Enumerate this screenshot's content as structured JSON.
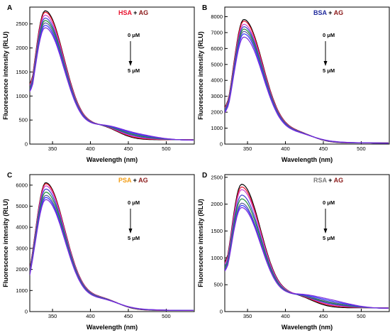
{
  "figure": {
    "protein_colors": {
      "HSA": "#e8112d",
      "BSA": "#1f2a9c",
      "PSA": "#f39c12",
      "RSA": "#7a7a7a"
    },
    "ligand_color": "#8b1a1a",
    "series_colors": [
      "#000000",
      "#e8112d",
      "#cc44cc",
      "#3f3fd0",
      "#1e8c3a",
      "#5a5a9a",
      "#3535ff",
      "#7a2ad9"
    ]
  },
  "chart_data": [
    {
      "type": "line",
      "panel_label": "A",
      "protein": "HSA",
      "plus": " + ",
      "ligand": "AG",
      "xlabel": "Wavelength (nm)",
      "ylabel": "Fluorescence intensity (RLU)",
      "xlim": [
        320,
        537
      ],
      "ylim": [
        0,
        2850
      ],
      "xticks": [
        350,
        400,
        450,
        500
      ],
      "yticks": [
        0,
        500,
        1000,
        1500,
        2000,
        2500
      ],
      "conc_start": "0 μM",
      "conc_end": "5 μM",
      "peak_x": 340,
      "peaks": [
        2750,
        2720,
        2660,
        2600,
        2550,
        2500,
        2450,
        2400
      ],
      "shoulders": [
        0,
        15,
        35,
        55,
        75,
        95,
        110,
        130
      ],
      "start_value": 1250,
      "tail_at_420": 470,
      "tail_end": 90,
      "grid": false,
      "legend": "none"
    },
    {
      "type": "line",
      "panel_label": "B",
      "protein": "BSA",
      "plus": " + ",
      "ligand": "AG",
      "xlabel": "Wavelength (nm)",
      "ylabel": "Fluorescence intensity (RLU)",
      "xlim": [
        320,
        537
      ],
      "ylim": [
        0,
        8600
      ],
      "xticks": [
        350,
        400,
        450,
        500
      ],
      "yticks": [
        0,
        1000,
        2000,
        3000,
        4000,
        5000,
        6000,
        7000,
        8000
      ],
      "conc_start": "0 μM",
      "conc_end": "5 μM",
      "peak_x": 345,
      "peaks": [
        7800,
        7700,
        7500,
        7350,
        7200,
        7050,
        6900,
        6700
      ],
      "shoulders": [
        0,
        10,
        20,
        30,
        40,
        50,
        60,
        70
      ],
      "start_value": 2300,
      "tail_at_420": 1100,
      "tail_end": 70,
      "grid": false,
      "legend": "none"
    },
    {
      "type": "line",
      "panel_label": "C",
      "protein": "PSA",
      "plus": " + ",
      "ligand": "AG",
      "xlabel": "Wavelength (nm)",
      "ylabel": "Fluorescence intensity (RLU)",
      "xlim": [
        320,
        537
      ],
      "ylim": [
        0,
        6500
      ],
      "xticks": [
        350,
        400,
        450,
        500
      ],
      "yticks": [
        0,
        1000,
        2000,
        3000,
        4000,
        5000,
        6000
      ],
      "conc_start": "0 μM",
      "conc_end": "5 μM",
      "peak_x": 341,
      "peaks": [
        6100,
        6050,
        5950,
        5800,
        5650,
        5500,
        5400,
        5300
      ],
      "shoulders": [
        0,
        8,
        16,
        24,
        32,
        40,
        48,
        56
      ],
      "start_value": 1950,
      "tail_at_420": 950,
      "tail_end": 60,
      "grid": false,
      "legend": "none"
    },
    {
      "type": "line",
      "panel_label": "D",
      "protein": "RSA",
      "plus": " + ",
      "ligand": "AG",
      "xlabel": "Wavelength (nm)",
      "ylabel": "Fluorescence intensity (RLU)",
      "xlim": [
        320,
        537
      ],
      "ylim": [
        0,
        2550
      ],
      "xticks": [
        350,
        400,
        450,
        500
      ],
      "yticks": [
        0,
        500,
        1000,
        1500,
        2000,
        2500
      ],
      "conc_start": "0 μM",
      "conc_end": "5 μM",
      "peak_x": 342,
      "peaks": [
        2350,
        2300,
        2250,
        2150,
        2080,
        2000,
        1960,
        1920
      ],
      "shoulders": [
        0,
        20,
        40,
        60,
        80,
        100,
        125,
        150
      ],
      "start_value": 920,
      "tail_at_420": 370,
      "tail_end": 70,
      "grid": false,
      "legend": "none"
    }
  ]
}
